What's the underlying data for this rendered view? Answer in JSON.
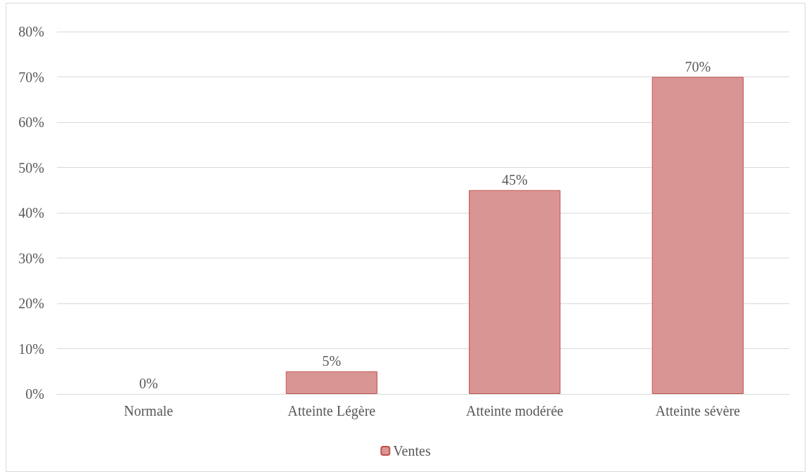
{
  "chart_data": {
    "type": "bar",
    "categories": [
      "Normale",
      "Atteinte Légère",
      "Atteinte modérée",
      "Atteinte sévère"
    ],
    "series": [
      {
        "name": "Ventes",
        "color": "#d99594",
        "values": [
          0,
          5,
          45,
          70
        ]
      }
    ],
    "value_labels": [
      "0%",
      "5%",
      "45%",
      "70%"
    ],
    "ylim": [
      0,
      80
    ],
    "yticks": [
      {
        "value": 0,
        "label": "0%"
      },
      {
        "value": 10,
        "label": "10%"
      },
      {
        "value": 20,
        "label": "20%"
      },
      {
        "value": 30,
        "label": "30%"
      },
      {
        "value": 40,
        "label": "40%"
      },
      {
        "value": 50,
        "label": "50%"
      },
      {
        "value": 60,
        "label": "60%"
      },
      {
        "value": 70,
        "label": "70%"
      },
      {
        "value": 80,
        "label": "80%"
      }
    ],
    "grid": "y",
    "legend": "bottom"
  }
}
